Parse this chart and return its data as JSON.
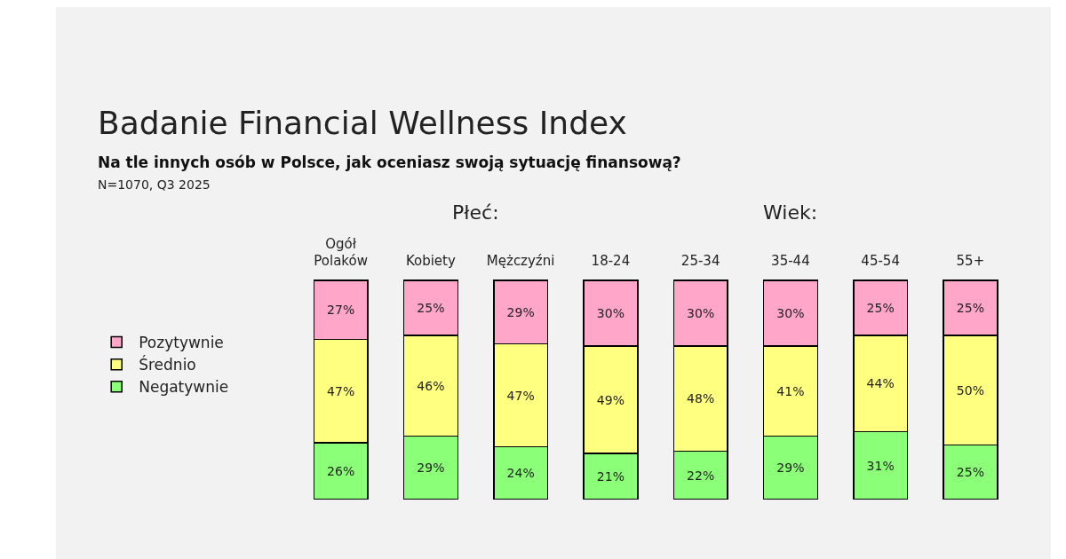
{
  "chart_data": {
    "type": "bar",
    "title": "Badanie Financial Wellness Index",
    "subtitle": "Na tle innych osób w Polsce, jak oceniasz swoją sytuację finansową?",
    "annotations": [
      "N=1070, Q3 2025",
      "Płeć:",
      "Wiek:"
    ],
    "categories": [
      "Ogół Polaków",
      "Kobiety",
      "Mężczyźni",
      "18-24",
      "25-34",
      "35-44",
      "45-54",
      "55+"
    ],
    "stacked": true,
    "legend": "left",
    "tick_labels": "x",
    "series": [
      {
        "name": "Negatywnie",
        "color": "#8cff78",
        "values": [
          26,
          29,
          24,
          21,
          22,
          29,
          31,
          25
        ],
        "value_labels": [
          "26%",
          "29%",
          "24%",
          "21%",
          "22%",
          "29%",
          "31%",
          "25%"
        ]
      },
      {
        "name": "Średnio",
        "color": "#ffff80",
        "values": [
          47,
          46,
          47,
          49,
          48,
          41,
          44,
          50
        ],
        "value_labels": [
          "47%",
          "46%",
          "47%",
          "49%",
          "48%",
          "41%",
          "44%",
          "50%"
        ]
      },
      {
        "name": "Pozytywnie",
        "color": "#ffa6c9",
        "values": [
          27,
          25,
          29,
          30,
          30,
          30,
          25,
          25
        ],
        "value_labels": [
          "27%",
          "25%",
          "29%",
          "30%",
          "30%",
          "30%",
          "25%",
          "25%"
        ]
      }
    ]
  }
}
